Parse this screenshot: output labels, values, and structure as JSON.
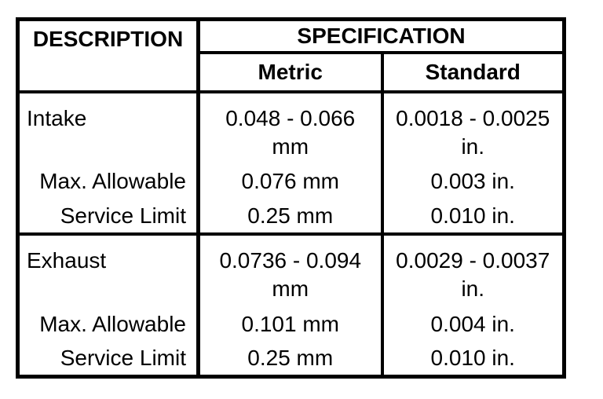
{
  "document": {
    "background_color": "#ffffff",
    "line_color": "#000000",
    "text_color": "#000000"
  },
  "table": {
    "headers": {
      "description": "DESCRIPTION",
      "specification": "SPECIFICATION",
      "metric": "Metric",
      "standard": "Standard"
    },
    "groups": [
      {
        "rows": [
          {
            "label": "Intake",
            "metric": [
              "0.048 - 0.066",
              "mm"
            ],
            "standard": [
              "0.0018 - 0.0025",
              "in."
            ]
          },
          {
            "label": "Max. Allowable",
            "metric": [
              "0.076 mm"
            ],
            "standard": [
              "0.003 in."
            ]
          },
          {
            "label": "Service Limit",
            "metric": [
              "0.25 mm"
            ],
            "standard": [
              "0.010 in."
            ]
          }
        ]
      },
      {
        "rows": [
          {
            "label": "Exhaust",
            "metric": [
              "0.0736 - 0.094",
              "mm"
            ],
            "standard": [
              "0.0029 - 0.0037",
              "in."
            ]
          },
          {
            "label": "Max. Allowable",
            "metric": [
              "0.101 mm"
            ],
            "standard": [
              "0.004 in."
            ]
          },
          {
            "label": "Service Limit",
            "metric": [
              "0.25 mm"
            ],
            "standard": [
              "0.010 in."
            ]
          }
        ]
      }
    ]
  }
}
